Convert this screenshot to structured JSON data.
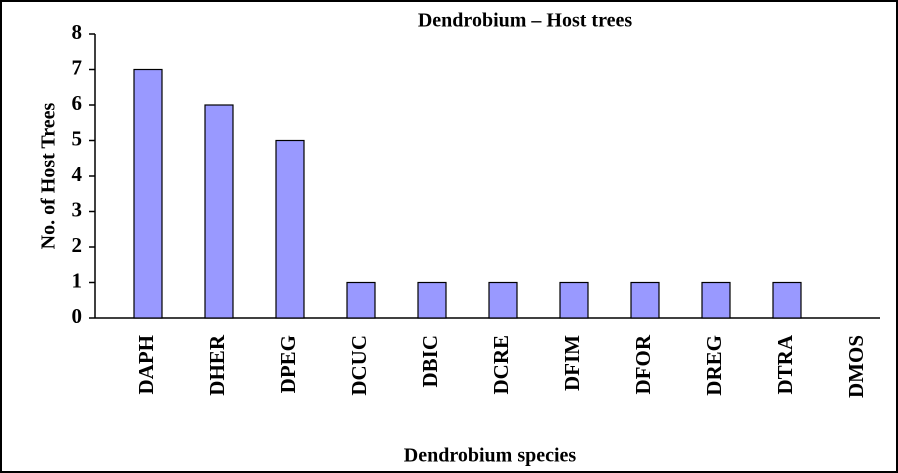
{
  "chart_data": {
    "type": "bar",
    "title": "Dendrobium – Host trees",
    "x_label": "Dendrobium species",
    "y_label": "No. of Host Trees",
    "categories": [
      "DAPH",
      "DHER",
      "DPEG",
      "DCUC",
      "DBIC",
      "DCRE",
      "DFIM",
      "DFOR",
      "DREG",
      "DTRA",
      "DMOS"
    ],
    "values": [
      7,
      6,
      5,
      1,
      1,
      1,
      1,
      1,
      1,
      1,
      0
    ],
    "color": "#9999ff",
    "ylim": [
      0,
      8
    ],
    "yticks": [
      0,
      1,
      2,
      3,
      4,
      5,
      6,
      7,
      8
    ],
    "grid": false
  }
}
